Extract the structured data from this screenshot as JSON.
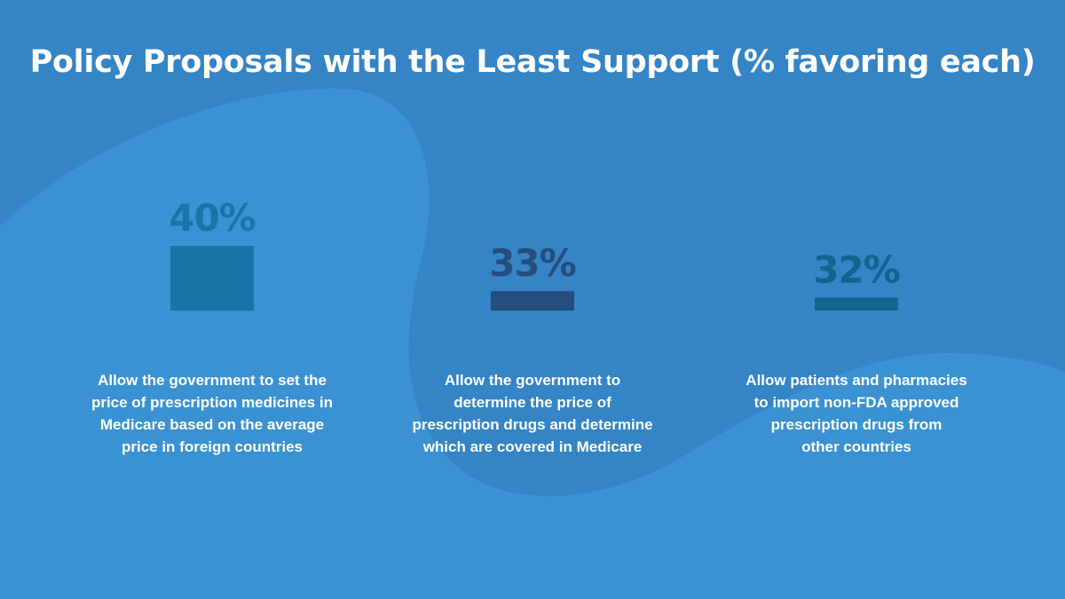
{
  "chart_data": {
    "type": "bar",
    "title": "Policy Proposals with the Least Support (% favoring each)",
    "xlabel": "",
    "ylabel": "",
    "grid": false,
    "categories": [
      [
        "Allow the government to set the",
        "price of prescription medicines in",
        "Medicare based on the average",
        "price in foreign countries"
      ],
      [
        "Allow the government to",
        "determine the price of",
        "prescription drugs and determine",
        "which are covered in Medicare"
      ],
      [
        "Allow patients and pharmacies",
        "to import non-FDA approved",
        "prescription drugs from",
        "other countries"
      ]
    ],
    "values": [
      40,
      33,
      32
    ],
    "value_labels": [
      "40%",
      "33%",
      "32%"
    ],
    "colors": [
      "#1a74a8",
      "#254e7c",
      "#0f6690"
    ]
  }
}
